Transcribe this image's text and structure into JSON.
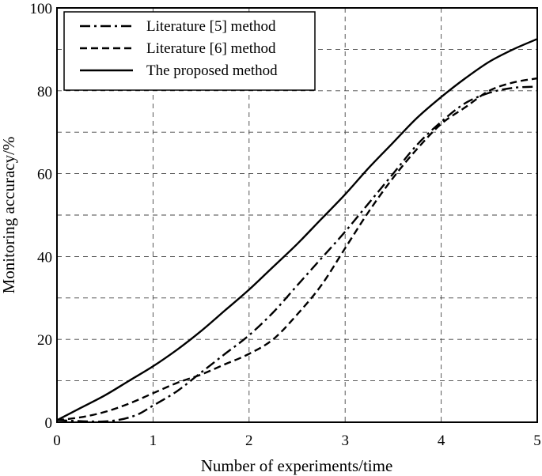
{
  "chart_data": {
    "type": "line",
    "xlabel": "Number of experiments/time",
    "ylabel": "Monitoring accuracy/%",
    "xlim": [
      0,
      5
    ],
    "ylim": [
      0,
      100
    ],
    "xticks": [
      0,
      1,
      2,
      3,
      4,
      5
    ],
    "yticks": [
      0,
      20,
      40,
      60,
      80,
      100
    ],
    "x_tick_labels": [
      "0",
      "1",
      "2",
      "3",
      "4",
      "5"
    ],
    "y_tick_labels": [
      "0",
      "20",
      "40",
      "60",
      "80",
      "100"
    ],
    "grid": true,
    "legend_position": "top-left",
    "series": [
      {
        "name": "Literature [5] method",
        "style": "dashdot",
        "x": [
          0,
          0.5,
          0.8,
          1.0,
          1.25,
          1.5,
          1.75,
          2.0,
          2.25,
          2.5,
          2.75,
          3.0,
          3.25,
          3.5,
          3.75,
          4.0,
          4.25,
          4.5,
          4.75,
          5.0
        ],
        "y": [
          0.5,
          0.2,
          1.5,
          4.0,
          7.5,
          12.0,
          16.5,
          21.0,
          26.5,
          33.0,
          39.5,
          46.0,
          53.0,
          60.0,
          67.0,
          72.5,
          77.0,
          79.5,
          80.7,
          81.0
        ]
      },
      {
        "name": "Literature [6] method",
        "style": "dashed",
        "x": [
          0,
          0.25,
          0.5,
          0.75,
          1.0,
          1.25,
          1.5,
          1.75,
          2.0,
          2.25,
          2.5,
          2.75,
          3.0,
          3.25,
          3.5,
          3.75,
          4.0,
          4.25,
          4.5,
          4.75,
          5.0
        ],
        "y": [
          0.5,
          1.2,
          2.5,
          4.5,
          7.0,
          9.5,
          11.5,
          14.0,
          16.5,
          20.0,
          26.0,
          33.0,
          42.0,
          51.0,
          59.0,
          66.0,
          72.0,
          76.0,
          80.0,
          82.0,
          83.0
        ]
      },
      {
        "name": "The proposed method",
        "style": "solid",
        "x": [
          0,
          0.25,
          0.5,
          0.75,
          1.0,
          1.25,
          1.5,
          1.75,
          2.0,
          2.25,
          2.5,
          2.75,
          3.0,
          3.25,
          3.5,
          3.75,
          4.0,
          4.25,
          4.5,
          4.75,
          5.0
        ],
        "y": [
          0.5,
          3.5,
          6.5,
          10.0,
          13.5,
          17.5,
          22.0,
          27.0,
          32.0,
          37.5,
          43.0,
          49.0,
          55.0,
          61.5,
          67.5,
          73.5,
          78.5,
          83.0,
          87.0,
          90.0,
          92.5
        ]
      }
    ]
  }
}
